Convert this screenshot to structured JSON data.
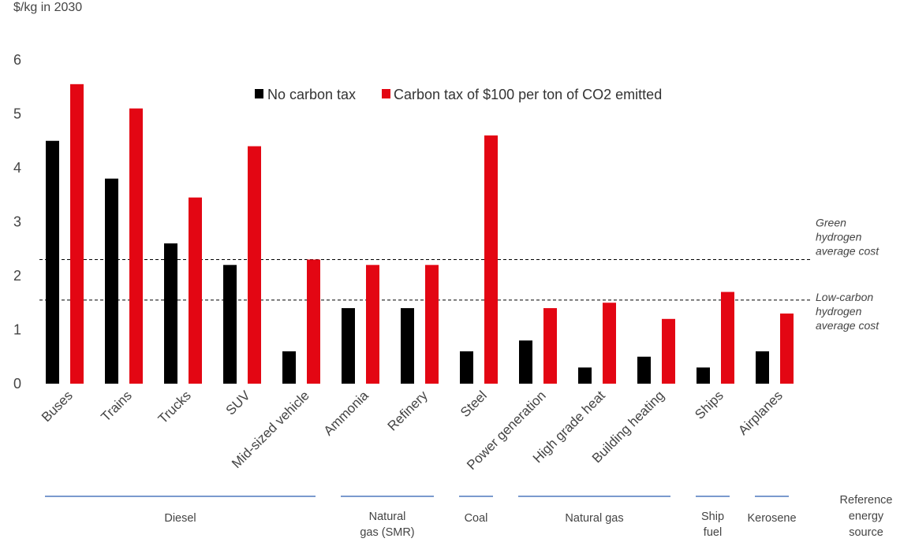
{
  "chart_data": {
    "type": "bar",
    "unit_label": "$/kg in 2030",
    "yticks": [
      "0",
      "1",
      "2",
      "3",
      "4",
      "5",
      "6"
    ],
    "ylim": [
      0,
      6
    ],
    "categories": [
      "Buses",
      "Trains",
      "Trucks",
      "SUV",
      "Mid-sized vehicle",
      "Ammonia",
      "Refinery",
      "Steel",
      "Power generation",
      "High grade heat",
      "Building heating",
      "Ships",
      "Airplanes"
    ],
    "series": [
      {
        "name": "No carbon tax",
        "color": "#000000",
        "values": [
          4.5,
          3.8,
          2.6,
          2.2,
          0.6,
          1.4,
          1.4,
          0.6,
          0.8,
          0.3,
          0.5,
          0.3,
          0.6
        ]
      },
      {
        "name": "Carbon tax of $100 per ton of CO2 emitted",
        "color": "#e30613",
        "values": [
          5.55,
          5.1,
          3.45,
          4.4,
          2.3,
          2.2,
          2.2,
          4.6,
          1.4,
          1.5,
          1.2,
          1.7,
          1.3
        ]
      }
    ],
    "reference_lines": [
      {
        "value": 2.3,
        "label_lines": [
          "Green",
          "hydrogen",
          "average cost"
        ]
      },
      {
        "value": 1.55,
        "label_lines": [
          "Low-carbon",
          "hydrogen",
          "average cost"
        ]
      }
    ],
    "groups": [
      {
        "label_lines": [
          "Diesel"
        ],
        "from": 0,
        "to": 4
      },
      {
        "label_lines": [
          "Natural",
          "gas (SMR)"
        ],
        "from": 5,
        "to": 6
      },
      {
        "label_lines": [
          "Coal"
        ],
        "from": 7,
        "to": 7
      },
      {
        "label_lines": [
          "Natural gas"
        ],
        "from": 8,
        "to": 10
      },
      {
        "label_lines": [
          "Ship",
          "fuel"
        ],
        "from": 11,
        "to": 11
      },
      {
        "label_lines": [
          "Kerosene"
        ],
        "from": 12,
        "to": 12
      }
    ],
    "group_axis_label_lines": [
      "Reference",
      "energy",
      "source"
    ],
    "legend_position": "top",
    "grid": false
  }
}
